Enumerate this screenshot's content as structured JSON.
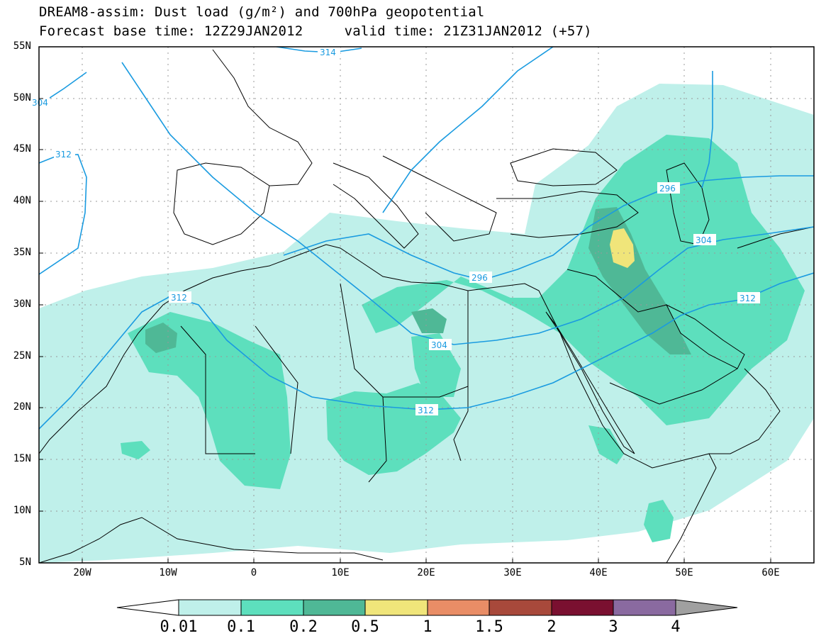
{
  "title": {
    "line1": "DREAM8-assim: Dust load (g/m²) and 700hPa geopotential",
    "line2": "Forecast base time: 12Z29JAN2012     valid time: 21Z31JAN2012 (+57)"
  },
  "axes": {
    "lat_labels": [
      "55N",
      "50N",
      "45N",
      "40N",
      "35N",
      "30N",
      "25N",
      "20N",
      "15N",
      "10N",
      "5N"
    ],
    "lon_labels": [
      "20W",
      "10W",
      "0",
      "10E",
      "20E",
      "30E",
      "40E",
      "50E",
      "60E"
    ],
    "lat_range": [
      5,
      55
    ],
    "lon_range": [
      -25,
      65
    ],
    "grid": "dotted"
  },
  "colorbar": {
    "levels": [
      "0.01",
      "0.1",
      "0.2",
      "0.5",
      "1",
      "1.5",
      "2",
      "3",
      "4"
    ],
    "colors": [
      "#ffffff",
      "#bff0ea",
      "#5ddfbd",
      "#4fb896",
      "#f0e57a",
      "#e98d66",
      "#a8493b",
      "#7a1030",
      "#8a6aa0",
      "#a0a0a0"
    ]
  },
  "contours": {
    "color": "#1a9be0",
    "labels": [
      "304",
      "312",
      "314",
      "296",
      "296",
      "304",
      "312",
      "304",
      "312"
    ]
  }
}
